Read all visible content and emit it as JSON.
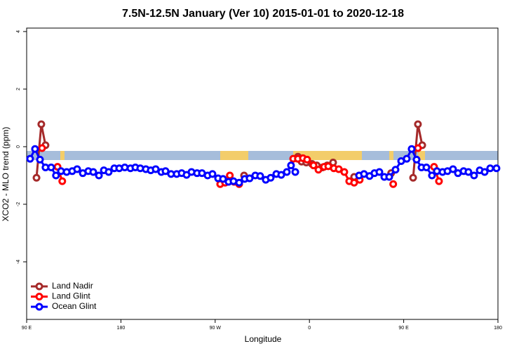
{
  "chart_data": {
    "type": "line",
    "title": "7.5N-12.5N January (Ver 10)   2015-01-01 to 2020-12-18",
    "x_label": "Longitude",
    "y_label": "XCO2 - MLO trend (ppm)",
    "xlim": [
      90,
      540
    ],
    "xticks": [
      {
        "value": 90,
        "label": "90 E"
      },
      180,
      {
        "value": 270,
        "label": "90 W"
      },
      {
        "value": 360,
        "label": "0"
      },
      {
        "value": 450,
        "label": "90 E"
      },
      {
        "value": 540,
        "label": "180"
      }
    ],
    "ylim": [
      -6,
      4.12
    ],
    "yticks": [
      -4,
      -2,
      0,
      2,
      4
    ],
    "legend": "bottom-left",
    "series": [
      {
        "name": "Land Nadir",
        "color": "#a52a2a",
        "x": [
          99.4,
          104,
          108,
          null,
          297.6,
          null,
          349,
          352.5,
          357,
          362.5,
          367,
          372.5,
          377,
          382.6,
          null,
          402.7,
          null,
          438,
          null,
          459,
          463.6,
          467.7
        ],
        "values": [
          -1.08,
          0.78,
          0.05,
          null,
          -1.0,
          null,
          -0.35,
          -0.52,
          -0.55,
          -0.6,
          -0.65,
          -0.72,
          -0.65,
          -0.55,
          null,
          -1.05,
          null,
          -0.92,
          null,
          -1.08,
          0.78,
          0.05
        ]
      },
      {
        "name": "Land Glint",
        "color": "#ff0000",
        "x": [
          104.7,
          null,
          119.5,
          124,
          null,
          274.8,
          279.5,
          284,
          288,
          292.9,
          null,
          344.5,
          349,
          353.8,
          357.8,
          363.9,
          368.6,
          374,
          378,
          383.3,
          388,
          393.3,
          398,
          402.7,
          408,
          null,
          440,
          null,
          463.6,
          null,
          479,
          483.7
        ],
        "values": [
          -0.05,
          null,
          -0.7,
          -1.2,
          null,
          -1.3,
          -1.25,
          -1.0,
          -1.22,
          -1.3,
          null,
          -0.42,
          -0.42,
          -0.4,
          -0.45,
          -0.65,
          -0.8,
          -0.7,
          -0.68,
          -0.75,
          -0.78,
          -0.88,
          -1.2,
          -1.25,
          -1.15,
          null,
          -1.3,
          null,
          -0.05,
          null,
          -0.7,
          -1.2
        ]
      },
      {
        "name": "Ocean Glint",
        "color": "#0000ff",
        "x": [
          93.3,
          98,
          102.7,
          108,
          113.4,
          118,
          122.8,
          128.2,
          133.5,
          138.2,
          143.6,
          148.9,
          153.6,
          159,
          163.7,
          168.3,
          173.7,
          178.4,
          183.7,
          189.1,
          193.8,
          198.5,
          203.8,
          208.5,
          213.2,
          218.6,
          222.6,
          227.9,
          233.3,
          238,
          242.7,
          247.4,
          252.7,
          257.4,
          262.8,
          267.4,
          272.8,
          277.5,
          282.8,
          287.5,
          292.9,
          298.2,
          302.9,
          308.3,
          313,
          318.3,
          323,
          328.4,
          333.1,
          338.4,
          342.4,
          346.5,
          null,
          407.4,
          412.1,
          417.4,
          422.1,
          426.8,
          431.5,
          436.2,
          442.2,
          447.6,
          452.9,
          457.6,
          462.3,
          467,
          471.7,
          477,
          481.7,
          487.1,
          491.8,
          497.1,
          501.8,
          507.2,
          511.8,
          517.2,
          522.6,
          527.3,
          532.6,
          538.6
        ],
        "values": [
          -0.42,
          -0.08,
          -0.45,
          -0.72,
          -0.72,
          -1.0,
          -0.85,
          -0.88,
          -0.85,
          -0.78,
          -0.92,
          -0.85,
          -0.88,
          -1.0,
          -0.82,
          -0.88,
          -0.75,
          -0.75,
          -0.72,
          -0.75,
          -0.72,
          -0.75,
          -0.78,
          -0.82,
          -0.78,
          -0.88,
          -0.85,
          -0.95,
          -0.95,
          -0.92,
          -0.98,
          -0.88,
          -0.92,
          -0.92,
          -1.0,
          -0.95,
          -1.1,
          -1.12,
          -1.22,
          -1.2,
          -1.25,
          -1.12,
          -1.1,
          -1.0,
          -1.02,
          -1.15,
          -1.08,
          -0.95,
          -0.98,
          -0.88,
          -0.65,
          -0.88,
          null,
          -1.0,
          -0.95,
          -1.02,
          -0.92,
          -0.88,
          -1.05,
          -1.05,
          -0.8,
          -0.5,
          -0.42,
          -0.08,
          -0.45,
          -0.72,
          -0.72,
          -1.0,
          -0.85,
          -0.88,
          -0.85,
          -0.78,
          -0.92,
          -0.85,
          -0.88,
          -1.0,
          -0.82,
          -0.88,
          -0.75,
          -0.75
        ]
      }
    ]
  }
}
